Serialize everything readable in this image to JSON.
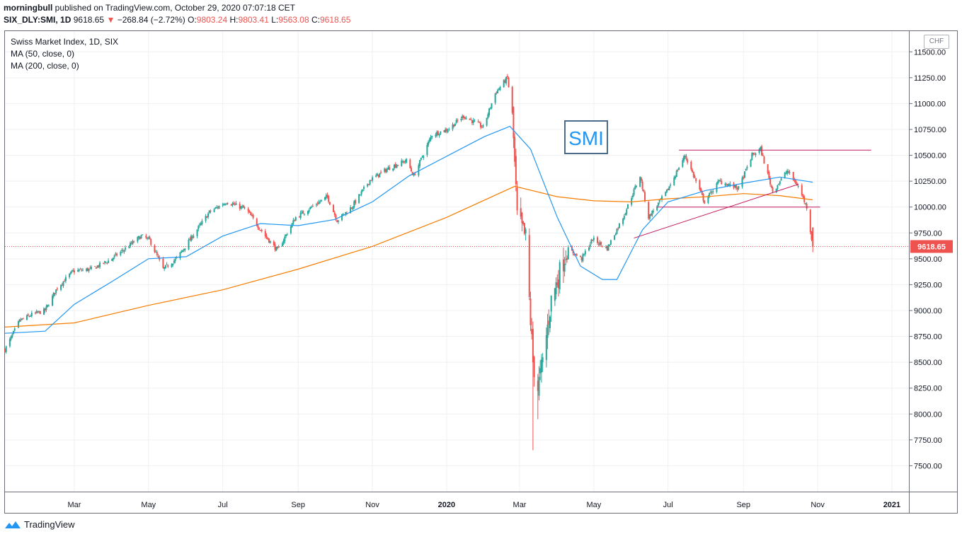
{
  "header": {
    "publisher": "morningbull",
    "published_text": "published on TradingView.com, October 29, 2020 07:07:18 CET",
    "symbol": "SIX_DLY:SMI, 1D",
    "last": "9618.65",
    "change": "−268.84 (−2.72%)",
    "o_label": "O:",
    "o": "9803.24",
    "h_label": "H:",
    "h": "9803.41",
    "l_label": "L:",
    "l": "9563.08",
    "c_label": "C:",
    "c": "9618.65"
  },
  "legend": {
    "title": "Swiss Market Index, 1D, SIX",
    "ma1": "MA (50, close, 0)",
    "ma2": "MA (200, close, 0)"
  },
  "currency": "CHF",
  "annotation": "SMI",
  "last_price_label": "9618.65",
  "footer": {
    "brand": "TradingView"
  },
  "colors": {
    "up": "#26a69a",
    "down": "#ef5350",
    "ma50": "#2196f3",
    "ma200": "#f57c00",
    "trendline": "#c2185b",
    "annotation": "#2196f3",
    "grid": "#eef0f3"
  },
  "chart_data": {
    "type": "candlestick",
    "title": "Swiss Market Index, 1D, SIX",
    "ylabel": "CHF",
    "ylim": [
      7250,
      11700
    ],
    "y_ticks": [
      7500,
      7750,
      8000,
      8250,
      8500,
      8750,
      9000,
      9250,
      9500,
      9750,
      10000,
      10250,
      10500,
      10750,
      11000,
      11250,
      11500
    ],
    "y_tick_labels": [
      "7500.00",
      "7750.00",
      "8000.00",
      "8250.00",
      "8500.00",
      "8750.00",
      "9000.00",
      "9250.00",
      "9500.00",
      "9750.00",
      "10000.00",
      "10250.00",
      "10500.00",
      "10750.00",
      "11000.00",
      "11250.00",
      "11500.00"
    ],
    "x_tick_labels": [
      "Mar",
      "May",
      "Jul",
      "Sep",
      "Nov",
      "2020",
      "Mar",
      "May",
      "Jul",
      "Sep",
      "Nov",
      "2021"
    ],
    "x_tick_dates": [
      "2019-03-01",
      "2019-05-01",
      "2019-07-01",
      "2019-09-01",
      "2019-11-01",
      "2020-01-01",
      "2020-03-01",
      "2020-05-01",
      "2020-07-01",
      "2020-09-01",
      "2020-11-01",
      "2021-01-01"
    ],
    "x_range": [
      "2019-01-03",
      "2021-01-15"
    ],
    "last_close": 9618.65,
    "close_path": [
      [
        "2019-01-03",
        8620
      ],
      [
        "2019-01-15",
        8900
      ],
      [
        "2019-01-25",
        8960
      ],
      [
        "2019-02-05",
        9000
      ],
      [
        "2019-02-15",
        9220
      ],
      [
        "2019-02-28",
        9380
      ],
      [
        "2019-03-15",
        9400
      ],
      [
        "2019-03-29",
        9480
      ],
      [
        "2019-04-10",
        9580
      ],
      [
        "2019-04-25",
        9720
      ],
      [
        "2019-05-02",
        9680
      ],
      [
        "2019-05-13",
        9400
      ],
      [
        "2019-05-24",
        9500
      ],
      [
        "2019-06-05",
        9700
      ],
      [
        "2019-06-20",
        9950
      ],
      [
        "2019-07-04",
        10050
      ],
      [
        "2019-07-20",
        9980
      ],
      [
        "2019-08-05",
        9720
      ],
      [
        "2019-08-15",
        9580
      ],
      [
        "2019-08-30",
        9900
      ],
      [
        "2019-09-12",
        10000
      ],
      [
        "2019-09-25",
        10100
      ],
      [
        "2019-10-03",
        9870
      ],
      [
        "2019-10-15",
        10000
      ],
      [
        "2019-10-30",
        10260
      ],
      [
        "2019-11-15",
        10380
      ],
      [
        "2019-11-29",
        10450
      ],
      [
        "2019-12-05",
        10300
      ],
      [
        "2019-12-20",
        10700
      ],
      [
        "2020-01-02",
        10750
      ],
      [
        "2020-01-15",
        10880
      ],
      [
        "2020-01-31",
        10770
      ],
      [
        "2020-02-10",
        11100
      ],
      [
        "2020-02-20",
        11250
      ],
      [
        "2020-02-24",
        10900
      ],
      [
        "2020-02-28",
        9900
      ],
      [
        "2020-03-06",
        9700
      ],
      [
        "2020-03-12",
        8500
      ],
      [
        "2020-03-16",
        8250
      ],
      [
        "2020-03-20",
        8500
      ],
      [
        "2020-03-27",
        9100
      ],
      [
        "2020-04-09",
        9600
      ],
      [
        "2020-04-21",
        9500
      ],
      [
        "2020-04-30",
        9690
      ],
      [
        "2020-05-12",
        9600
      ],
      [
        "2020-05-25",
        9900
      ],
      [
        "2020-06-08",
        10300
      ],
      [
        "2020-06-15",
        9900
      ],
      [
        "2020-06-30",
        10150
      ],
      [
        "2020-07-15",
        10500
      ],
      [
        "2020-07-31",
        10050
      ],
      [
        "2020-08-12",
        10250
      ],
      [
        "2020-08-28",
        10180
      ],
      [
        "2020-09-08",
        10500
      ],
      [
        "2020-09-15",
        10560
      ],
      [
        "2020-09-25",
        10150
      ],
      [
        "2020-10-07",
        10350
      ],
      [
        "2020-10-16",
        10200
      ],
      [
        "2020-10-23",
        10000
      ],
      [
        "2020-10-28",
        9618.65
      ]
    ],
    "ma50_path": [
      [
        "2019-01-03",
        8780
      ],
      [
        "2019-02-05",
        8800
      ],
      [
        "2019-03-01",
        9060
      ],
      [
        "2019-04-01",
        9280
      ],
      [
        "2019-05-01",
        9500
      ],
      [
        "2019-06-01",
        9520
      ],
      [
        "2019-07-01",
        9720
      ],
      [
        "2019-08-01",
        9840
      ],
      [
        "2019-09-01",
        9820
      ],
      [
        "2019-10-01",
        9880
      ],
      [
        "2019-11-01",
        10050
      ],
      [
        "2019-12-01",
        10300
      ],
      [
        "2020-01-01",
        10490
      ],
      [
        "2020-02-01",
        10680
      ],
      [
        "2020-02-22",
        10780
      ],
      [
        "2020-03-10",
        10560
      ],
      [
        "2020-04-01",
        9900
      ],
      [
        "2020-04-20",
        9430
      ],
      [
        "2020-05-08",
        9300
      ],
      [
        "2020-05-20",
        9300
      ],
      [
        "2020-06-10",
        9780
      ],
      [
        "2020-07-01",
        10050
      ],
      [
        "2020-08-01",
        10160
      ],
      [
        "2020-09-01",
        10230
      ],
      [
        "2020-10-01",
        10290
      ],
      [
        "2020-10-28",
        10240
      ]
    ],
    "ma200_path": [
      [
        "2019-01-03",
        8840
      ],
      [
        "2019-03-01",
        8880
      ],
      [
        "2019-05-01",
        9050
      ],
      [
        "2019-07-01",
        9200
      ],
      [
        "2019-09-01",
        9400
      ],
      [
        "2019-11-01",
        9620
      ],
      [
        "2020-01-01",
        9900
      ],
      [
        "2020-02-26",
        10200
      ],
      [
        "2020-04-01",
        10100
      ],
      [
        "2020-05-01",
        10060
      ],
      [
        "2020-06-01",
        10050
      ],
      [
        "2020-07-01",
        10080
      ],
      [
        "2020-08-01",
        10100
      ],
      [
        "2020-09-01",
        10130
      ],
      [
        "2020-10-01",
        10110
      ],
      [
        "2020-10-28",
        10070
      ]
    ],
    "extreme_lows": [
      [
        "2020-03-12",
        7650
      ],
      [
        "2020-03-16",
        7950
      ]
    ],
    "trendlines": [
      {
        "from": [
          "2020-07-10",
          10550
        ],
        "to": [
          "2020-12-15",
          10550
        ]
      },
      {
        "from": [
          "2020-06-22",
          10000
        ],
        "to": [
          "2020-11-03",
          10000
        ]
      },
      {
        "from": [
          "2020-06-03",
          9700
        ],
        "to": [
          "2020-10-16",
          10220
        ]
      }
    ]
  }
}
